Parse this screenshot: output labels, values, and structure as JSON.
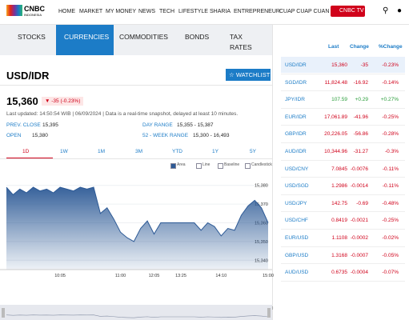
{
  "header": {
    "logo": "CNBC",
    "logo_sub": "INDONESIA",
    "nav": [
      "HOME",
      "MARKET",
      "MY MONEY",
      "NEWS",
      "TECH",
      "LIFESTYLE",
      "SHARIA",
      "ENTREPRENEUR",
      "CUAP CUAP CUAN"
    ],
    "tv_button": "CNBC TV"
  },
  "tabs": [
    "STOCKS",
    "CURRENCIES",
    "COMMODITIES",
    "BONDS",
    "TAX RATES"
  ],
  "quote": {
    "symbol": "USD/IDR",
    "watchlist": "WATCHLIST",
    "price": "15,360",
    "change": "-35 (-0.23%)",
    "updated": "Last updated: 14:50:54 WIB | 06/09/2024 | Data is a real-time snapshot, delayed at least 10 minutes.",
    "stats": [
      {
        "label": "PREV. CLOSE",
        "value": "15,395"
      },
      {
        "label": "OPEN",
        "value": "15,380"
      },
      {
        "label": "DAY RANGE",
        "value": "15,355 - 15,387"
      },
      {
        "label": "52 - WEEK RANGE",
        "value": "15,300 - 16,493"
      }
    ],
    "ranges": [
      "1D",
      "1W",
      "1M",
      "3M",
      "YTD",
      "1Y",
      "5Y"
    ],
    "chart_types": [
      "Area",
      "Line",
      "Baseline",
      "Candlestick"
    ]
  },
  "chart_data": {
    "type": "area",
    "color": "#2d5a96",
    "categories": [
      null,
      null,
      null,
      null,
      null,
      null,
      null,
      null,
      "10:05",
      null,
      null,
      null,
      null,
      null,
      null,
      null,
      null,
      "11:00",
      null,
      null,
      null,
      null,
      "12:05",
      null,
      null,
      null,
      "13:25",
      null,
      null,
      null,
      null,
      null,
      "14:10",
      null,
      null,
      null,
      null,
      null,
      null,
      "15:00"
    ],
    "values": [
      15379,
      15375,
      15378,
      15376,
      15379,
      15377,
      15378,
      15376,
      15379,
      15378,
      15377,
      15379,
      15378,
      15379,
      15365,
      15368,
      15362,
      15355,
      15352,
      15350,
      15357,
      15361,
      15354,
      15360,
      15360,
      15360,
      15360,
      15360,
      15360,
      15356,
      15360,
      15358,
      15353,
      15357,
      15356,
      15364,
      15369,
      15372,
      15368,
      15360
    ],
    "ylim": [
      15335,
      15385
    ],
    "yticks": [
      {
        "value": 15340,
        "label": "15,340"
      },
      {
        "value": 15350,
        "label": "15,350"
      },
      {
        "value": 15360,
        "label": "15,360"
      },
      {
        "value": 15370,
        "label": "15,370"
      },
      {
        "value": 15380,
        "label": "15,380"
      }
    ],
    "grid": true
  },
  "table": {
    "headers": [
      "Last",
      "Change",
      "%Change"
    ],
    "rows": [
      [
        "USD/IDR",
        "15,360",
        "-35",
        "-0.23%"
      ],
      [
        "SGD/IDR",
        "11,824.48",
        "-16.92",
        "-0.14%"
      ],
      [
        "JPY/IDR",
        "107.59",
        "+0.29",
        "+0.27%"
      ],
      [
        "EUR/IDR",
        "17,061.89",
        "-41.96",
        "-0.25%"
      ],
      [
        "GBP/IDR",
        "20,226.05",
        "-56.86",
        "-0.28%"
      ],
      [
        "AUD/IDR",
        "10,344.96",
        "-31.27",
        "-0.3%"
      ],
      [
        "USD/CNY",
        "7.0845",
        "-0.0076",
        "-0.11%"
      ],
      [
        "USD/SGD",
        "1.2986",
        "-0.0014",
        "-0.11%"
      ],
      [
        "USD/JPY",
        "142.75",
        "-0.69",
        "-0.48%"
      ],
      [
        "USD/CHF",
        "0.8419",
        "-0.0021",
        "-0.25%"
      ],
      [
        "EUR/USD",
        "1.1108",
        "-0.0002",
        "-0.02%"
      ],
      [
        "GBP/USD",
        "1.3168",
        "-0.0007",
        "-0.05%"
      ],
      [
        "AUD/USD",
        "0.6735",
        "-0.0004",
        "-0.07%"
      ]
    ]
  }
}
